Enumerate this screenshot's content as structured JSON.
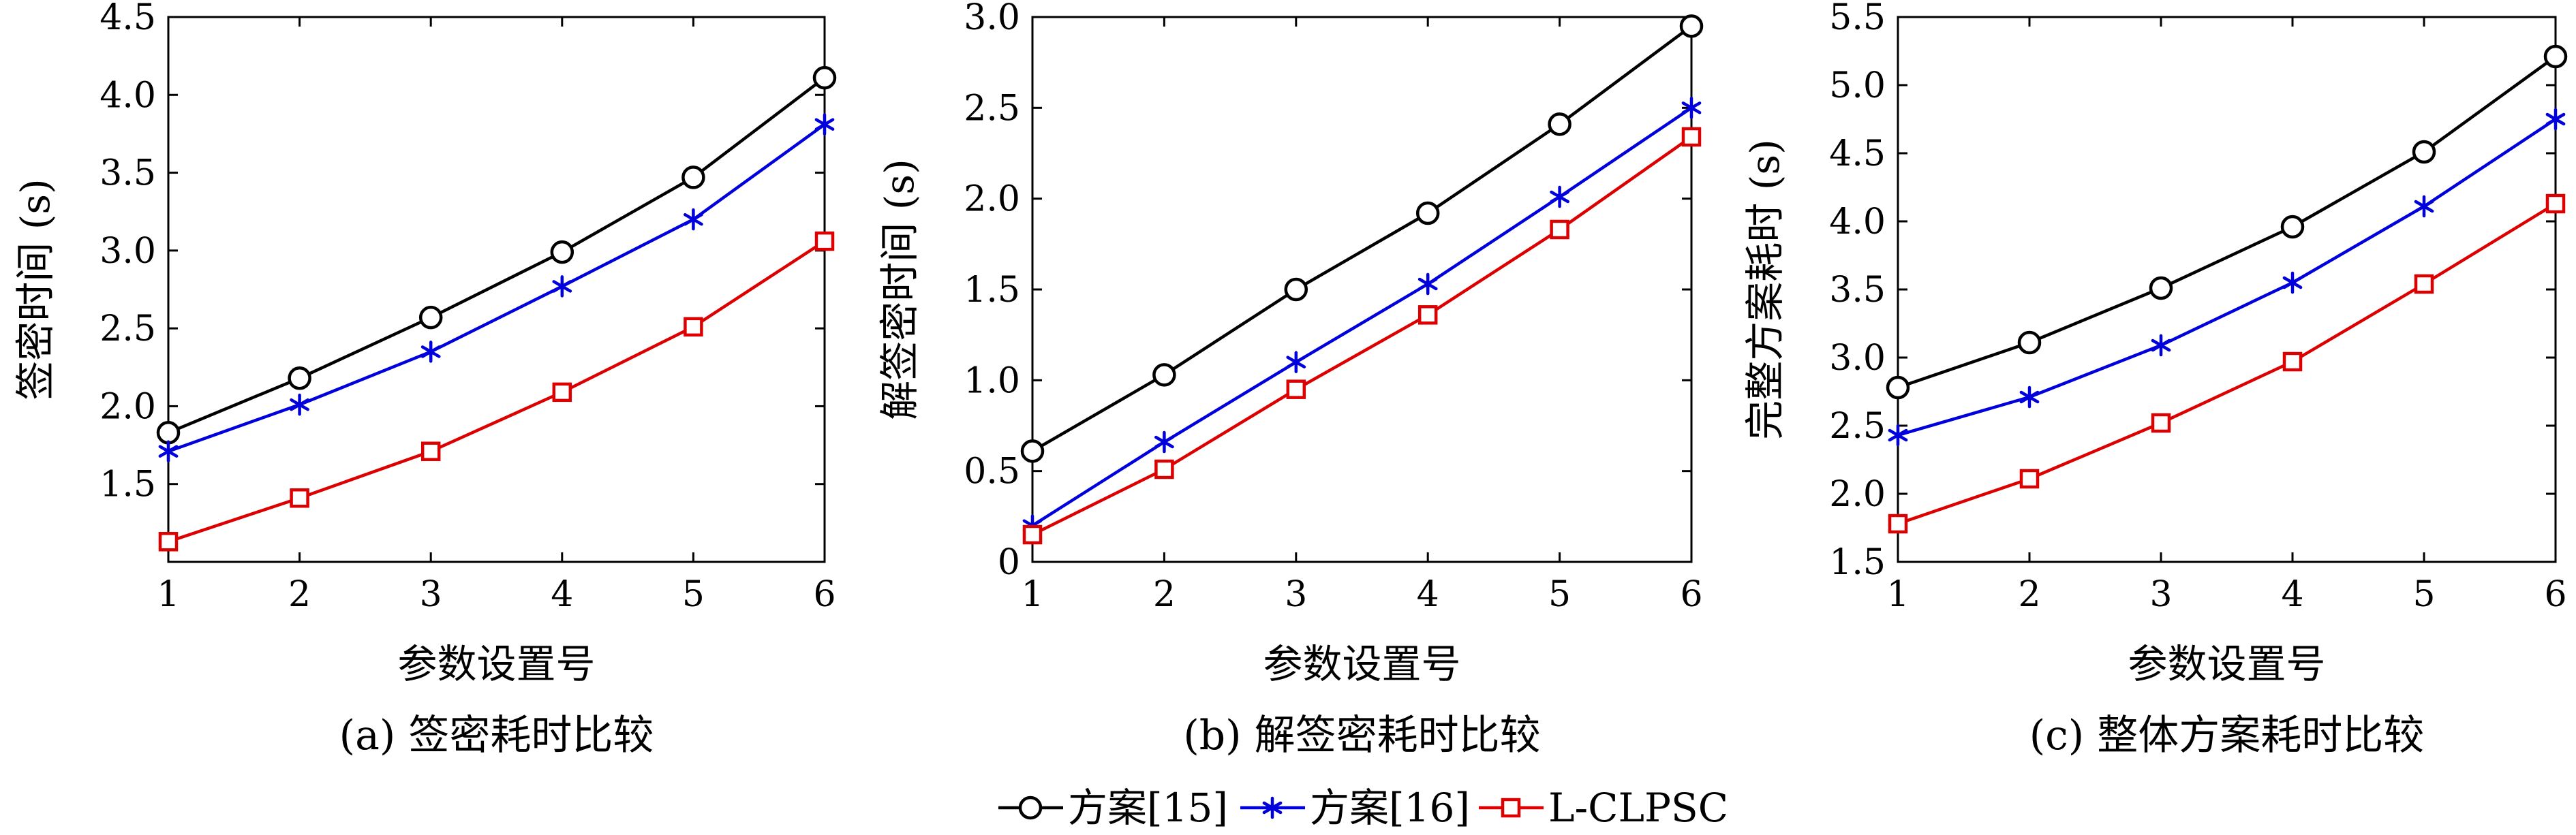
{
  "chart_data": [
    {
      "type": "line",
      "caption": "(a) 签密耗时比较",
      "xlabel": "参数设置号",
      "ylabel": "签密时间 (s)",
      "x": [
        1,
        2,
        3,
        4,
        5,
        6
      ],
      "xticks": [
        "1",
        "2",
        "3",
        "4",
        "5",
        "6"
      ],
      "ylim": [
        1.0,
        4.5
      ],
      "yticks": [
        "1.5",
        "2.0",
        "2.5",
        "3.0",
        "3.5",
        "4.0",
        "4.5"
      ],
      "series": [
        {
          "name": "方案[15]",
          "marker": "circle",
          "color": "#000000",
          "values": [
            1.83,
            2.18,
            2.57,
            2.99,
            3.47,
            4.11
          ]
        },
        {
          "name": "方案[16]",
          "marker": "star",
          "color": "#0000dd",
          "values": [
            1.71,
            2.01,
            2.35,
            2.77,
            3.2,
            3.81
          ]
        },
        {
          "name": "L-CLPSC",
          "marker": "square",
          "color": "#dd0000",
          "values": [
            1.13,
            1.41,
            1.71,
            2.09,
            2.51,
            3.06
          ]
        }
      ]
    },
    {
      "type": "line",
      "caption": "(b) 解签密耗时比较",
      "xlabel": "参数设置号",
      "ylabel": "解签密时间 (s)",
      "x": [
        1,
        2,
        3,
        4,
        5,
        6
      ],
      "xticks": [
        "1",
        "2",
        "3",
        "4",
        "5",
        "6"
      ],
      "ylim": [
        0,
        3.0
      ],
      "yticks": [
        "0",
        "0.5",
        "1.0",
        "1.5",
        "2.0",
        "2.5",
        "3.0"
      ],
      "series": [
        {
          "name": "方案[15]",
          "marker": "circle",
          "color": "#000000",
          "values": [
            0.61,
            1.03,
            1.5,
            1.92,
            2.41,
            2.95
          ]
        },
        {
          "name": "方案[16]",
          "marker": "star",
          "color": "#0000dd",
          "values": [
            0.2,
            0.66,
            1.1,
            1.53,
            2.01,
            2.5
          ]
        },
        {
          "name": "L-CLPSC",
          "marker": "square",
          "color": "#dd0000",
          "values": [
            0.15,
            0.51,
            0.95,
            1.36,
            1.83,
            2.34
          ]
        }
      ]
    },
    {
      "type": "line",
      "caption": "(c) 整体方案耗时比较",
      "xlabel": "参数设置号",
      "ylabel": "完整方案耗时 (s)",
      "x": [
        1,
        2,
        3,
        4,
        5,
        6
      ],
      "xticks": [
        "1",
        "2",
        "3",
        "4",
        "5",
        "6"
      ],
      "ylim": [
        1.5,
        5.5
      ],
      "yticks": [
        "1.5",
        "2.0",
        "2.5",
        "3.0",
        "3.5",
        "4.0",
        "4.5",
        "5.0",
        "5.5"
      ],
      "series": [
        {
          "name": "方案[15]",
          "marker": "circle",
          "color": "#000000",
          "values": [
            2.78,
            3.11,
            3.51,
            3.96,
            4.51,
            5.21
          ]
        },
        {
          "name": "方案[16]",
          "marker": "star",
          "color": "#0000dd",
          "values": [
            2.43,
            2.71,
            3.09,
            3.55,
            4.11,
            4.75
          ]
        },
        {
          "name": "L-CLPSC",
          "marker": "square",
          "color": "#dd0000",
          "values": [
            1.78,
            2.11,
            2.52,
            2.97,
            3.54,
            4.13
          ]
        }
      ]
    }
  ],
  "legend": {
    "placement": "bottom-center",
    "items": [
      {
        "label": "方案[15]",
        "marker": "circle",
        "color": "#000000"
      },
      {
        "label": "方案[16]",
        "marker": "star",
        "color": "#0000dd"
      },
      {
        "label": "L-CLPSC",
        "marker": "square",
        "color": "#dd0000"
      }
    ]
  }
}
